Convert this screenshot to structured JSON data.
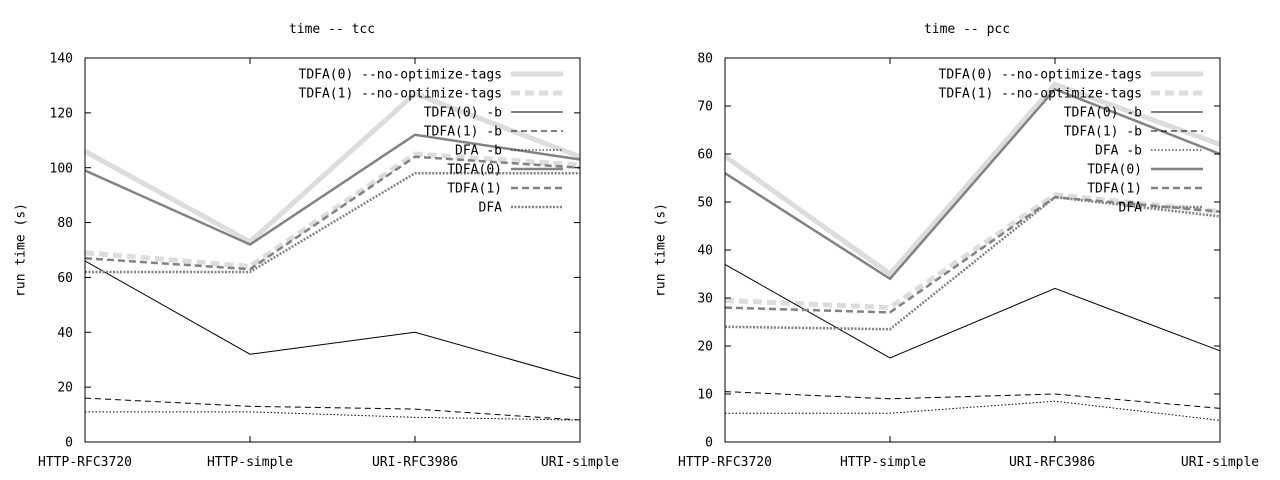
{
  "chart_data": [
    {
      "type": "line",
      "title": "time -- tcc",
      "xlabel": "",
      "ylabel": "run time (s)",
      "categories": [
        "HTTP-RFC3720",
        "HTTP-simple",
        "URI-RFC3986",
        "URI-simple"
      ],
      "ylim": [
        0,
        140
      ],
      "yticks": [
        "0",
        "20",
        "40",
        "60",
        "80",
        "100",
        "120",
        "140"
      ],
      "legend_position": "top-right",
      "grid": false,
      "series": [
        {
          "name": "TDFA(0) --no-optimize-tags",
          "style": "thick-light-solid",
          "color": "#dcdcdc",
          "values": [
            106,
            73,
            127,
            104
          ]
        },
        {
          "name": "TDFA(1) --no-optimize-tags",
          "style": "thick-light-dashed",
          "color": "#dcdcdc",
          "values": [
            69,
            64,
            105,
            101
          ]
        },
        {
          "name": "TDFA(0) -b",
          "style": "thin-black-solid",
          "color": "#000000",
          "values": [
            66,
            32,
            40,
            23
          ]
        },
        {
          "name": "TDFA(1) -b",
          "style": "thin-black-dashed",
          "color": "#000000",
          "values": [
            16,
            13,
            12,
            8
          ]
        },
        {
          "name": "DFA -b",
          "style": "thin-black-dotted",
          "color": "#000000",
          "values": [
            11,
            11,
            9,
            8
          ]
        },
        {
          "name": "TDFA(0)",
          "style": "medium-gray-solid",
          "color": "#828282",
          "values": [
            99,
            72,
            112,
            103
          ]
        },
        {
          "name": "TDFA(1)",
          "style": "medium-gray-dashed",
          "color": "#828282",
          "values": [
            67,
            63,
            104,
            100
          ]
        },
        {
          "name": "DFA",
          "style": "medium-gray-dotted",
          "color": "#828282",
          "values": [
            62,
            62,
            98,
            98
          ]
        }
      ]
    },
    {
      "type": "line",
      "title": "time -- pcc",
      "xlabel": "",
      "ylabel": "run time (s)",
      "categories": [
        "HTTP-RFC3720",
        "HTTP-simple",
        "URI-RFC3986",
        "URI-simple"
      ],
      "ylim": [
        0,
        80
      ],
      "yticks": [
        "0",
        "10",
        "20",
        "30",
        "40",
        "50",
        "60",
        "70",
        "80"
      ],
      "legend_position": "top-right",
      "grid": false,
      "series": [
        {
          "name": "TDFA(0) --no-optimize-tags",
          "style": "thick-light-solid",
          "color": "#dcdcdc",
          "values": [
            59.5,
            35,
            74.5,
            62
          ]
        },
        {
          "name": "TDFA(1) --no-optimize-tags",
          "style": "thick-light-dashed",
          "color": "#dcdcdc",
          "values": [
            29.5,
            28,
            51.5,
            48
          ]
        },
        {
          "name": "TDFA(0) -b",
          "style": "thin-black-solid",
          "color": "#000000",
          "values": [
            37,
            17.5,
            32,
            19
          ]
        },
        {
          "name": "TDFA(1) -b",
          "style": "thin-black-dashed",
          "color": "#000000",
          "values": [
            10.5,
            9,
            10,
            7
          ]
        },
        {
          "name": "DFA -b",
          "style": "thin-black-dotted",
          "color": "#000000",
          "values": [
            6,
            6,
            8.5,
            4.5
          ]
        },
        {
          "name": "TDFA(0)",
          "style": "medium-gray-solid",
          "color": "#828282",
          "values": [
            56,
            34,
            73.5,
            60
          ]
        },
        {
          "name": "TDFA(1)",
          "style": "medium-gray-dashed",
          "color": "#828282",
          "values": [
            28,
            27,
            51,
            48
          ]
        },
        {
          "name": "DFA",
          "style": "medium-gray-dotted",
          "color": "#828282",
          "values": [
            24,
            23.5,
            51,
            47
          ]
        }
      ]
    }
  ]
}
